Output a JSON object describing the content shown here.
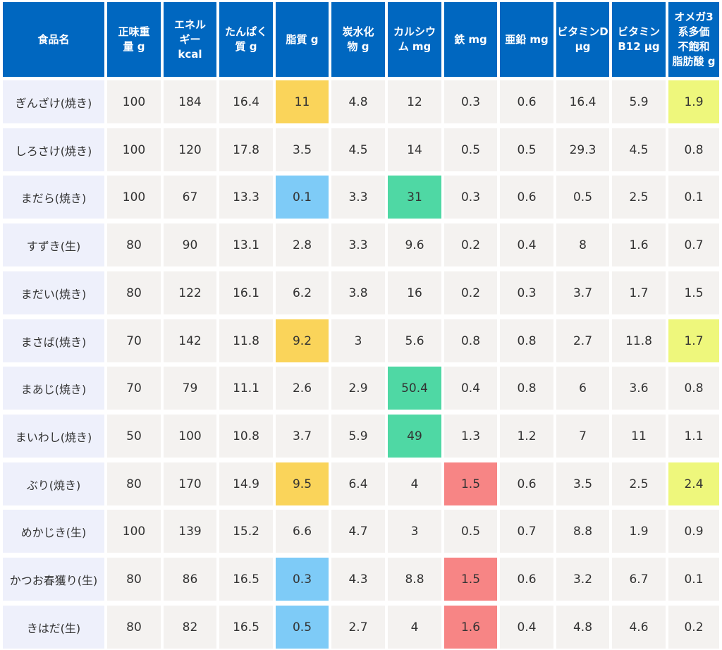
{
  "table": {
    "headers": [
      "食品名",
      "正味重\n量 g",
      "エネル\nギー\nkcal",
      "たんぱく\n質 g",
      "脂質 g",
      "炭水化\n物 g",
      "カルシウ\nム mg",
      "鉄 mg",
      "亜鉛 mg",
      "ビタミンD\nμg",
      "ビタミン\nB12 μg",
      "オメガ3\n系多価\n不飽和\n脂肪酸 g"
    ],
    "rows": [
      [
        "ぎんざけ(焼き)",
        "100",
        "184",
        "16.4",
        "11",
        "4.8",
        "12",
        "0.3",
        "0.6",
        "16.4",
        "5.9",
        "1.9"
      ],
      [
        "しろさけ(焼き)",
        "100",
        "120",
        "17.8",
        "3.5",
        "4.5",
        "14",
        "0.5",
        "0.5",
        "29.3",
        "4.5",
        "0.8"
      ],
      [
        "まだら(焼き)",
        "100",
        "67",
        "13.3",
        "0.1",
        "3.3",
        "31",
        "0.3",
        "0.6",
        "0.5",
        "2.5",
        "0.1"
      ],
      [
        "すずき(生)",
        "80",
        "90",
        "13.1",
        "2.8",
        "3.3",
        "9.6",
        "0.2",
        "0.4",
        "8",
        "1.6",
        "0.7"
      ],
      [
        "まだい(焼き)",
        "80",
        "122",
        "16.1",
        "6.2",
        "3.8",
        "16",
        "0.2",
        "0.3",
        "3.7",
        "1.7",
        "1.5"
      ],
      [
        "まさば(焼き)",
        "70",
        "142",
        "11.8",
        "9.2",
        "3",
        "5.6",
        "0.8",
        "0.8",
        "2.7",
        "11.8",
        "1.7"
      ],
      [
        "まあじ(焼き)",
        "70",
        "79",
        "11.1",
        "2.6",
        "2.9",
        "50.4",
        "0.4",
        "0.8",
        "6",
        "3.6",
        "0.8"
      ],
      [
        "まいわし(焼き)",
        "50",
        "100",
        "10.8",
        "3.7",
        "5.9",
        "49",
        "1.3",
        "1.2",
        "7",
        "11",
        "1.1"
      ],
      [
        "ぶり(焼き)",
        "80",
        "170",
        "14.9",
        "9.5",
        "6.4",
        "4",
        "1.5",
        "0.6",
        "3.5",
        "2.5",
        "2.4"
      ],
      [
        "めかじき(生)",
        "100",
        "139",
        "15.2",
        "6.6",
        "4.7",
        "3",
        "0.5",
        "0.7",
        "8.8",
        "1.9",
        "0.9"
      ],
      [
        "かつお春獲り(生)",
        "80",
        "86",
        "16.5",
        "0.3",
        "4.3",
        "8.8",
        "1.5",
        "0.6",
        "3.2",
        "6.7",
        "0.1"
      ],
      [
        "きはだ(生)",
        "80",
        "82",
        "16.5",
        "0.5",
        "2.7",
        "4",
        "1.6",
        "0.4",
        "4.8",
        "4.6",
        "0.2"
      ]
    ],
    "highlights": [
      {
        "row": 0,
        "col": 4,
        "color": "#fad45a"
      },
      {
        "row": 0,
        "col": 11,
        "color": "#eef77c"
      },
      {
        "row": 2,
        "col": 4,
        "color": "#7ecbf7"
      },
      {
        "row": 2,
        "col": 6,
        "color": "#4fd8a4"
      },
      {
        "row": 5,
        "col": 4,
        "color": "#fad45a"
      },
      {
        "row": 5,
        "col": 11,
        "color": "#eef77c"
      },
      {
        "row": 6,
        "col": 6,
        "color": "#4fd8a4"
      },
      {
        "row": 7,
        "col": 6,
        "color": "#4fd8a4"
      },
      {
        "row": 8,
        "col": 4,
        "color": "#fad45a"
      },
      {
        "row": 8,
        "col": 7,
        "color": "#f78585"
      },
      {
        "row": 8,
        "col": 11,
        "color": "#eef77c"
      },
      {
        "row": 10,
        "col": 4,
        "color": "#7ecbf7"
      },
      {
        "row": 10,
        "col": 7,
        "color": "#f78585"
      },
      {
        "row": 11,
        "col": 4,
        "color": "#7ecbf7"
      },
      {
        "row": 11,
        "col": 7,
        "color": "#f78585"
      }
    ],
    "colors": {
      "header_bg": "#0067c0",
      "header_text": "#ffffff",
      "name_bg": "#eef0fb",
      "cell_bg": "#f4f2f0"
    }
  }
}
